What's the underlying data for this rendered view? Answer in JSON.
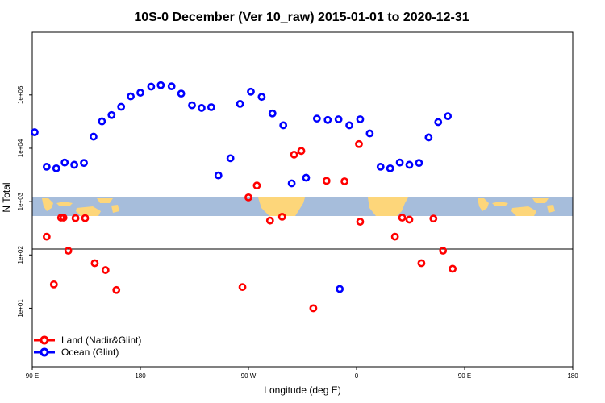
{
  "chart_data": {
    "type": "scatter",
    "title": "10S-0 December (Ver 10_raw)   2015-01-01 to 2020-12-31",
    "xlabel": "Longitude (deg E)",
    "ylabel": "N Total",
    "xlim": [
      90,
      450
    ],
    "ylog": true,
    "ylim": [
      0.8,
      1500000
    ],
    "x_ticks": [
      {
        "value": 90,
        "label": "90 E"
      },
      {
        "value": 180,
        "label": "180"
      },
      {
        "value": 270,
        "label": "90 W"
      },
      {
        "value": 360,
        "label": "0"
      },
      {
        "value": 450,
        "label": "90 E"
      },
      {
        "value": 540,
        "label": "180"
      }
    ],
    "y_ticks": [
      {
        "value": 10,
        "label": "1e+01"
      },
      {
        "value": 100,
        "label": "1e+02"
      },
      {
        "value": 1000,
        "label": "1e+03"
      },
      {
        "value": 10000,
        "label": "1e+04"
      },
      {
        "value": 100000,
        "label": "1e+05"
      }
    ],
    "note_axis": "x axis spans 90 E (90) to 180 (540) across two longitude cycles",
    "series": [
      {
        "name": "Land (Nadir&Glint)",
        "color": "#ff0000",
        "points": [
          [
            102,
            220
          ],
          [
            108,
            28
          ],
          [
            114,
            500
          ],
          [
            116,
            500
          ],
          [
            120,
            120
          ],
          [
            126,
            490
          ],
          [
            134,
            490
          ],
          [
            142,
            70
          ],
          [
            151,
            52
          ],
          [
            160,
            22
          ],
          [
            265,
            25
          ],
          [
            270,
            1200
          ],
          [
            277,
            2000
          ],
          [
            288,
            440
          ],
          [
            298,
            520
          ],
          [
            308,
            7600
          ],
          [
            314,
            8900
          ],
          [
            324,
            10
          ],
          [
            335,
            2450
          ],
          [
            350,
            2400
          ],
          [
            362,
            12000
          ],
          [
            363,
            420
          ],
          [
            392,
            220
          ],
          [
            398,
            500
          ],
          [
            404,
            460
          ],
          [
            414,
            70
          ],
          [
            424,
            480
          ],
          [
            432,
            120
          ],
          [
            440,
            55
          ]
        ]
      },
      {
        "name": "Ocean (Glint)",
        "color": "#0000ff",
        "points": [
          [
            92,
            20000
          ],
          [
            102,
            4500
          ],
          [
            110,
            4200
          ],
          [
            117,
            5400
          ],
          [
            125,
            4900
          ],
          [
            133,
            5300
          ],
          [
            141,
            16500
          ],
          [
            148,
            32000
          ],
          [
            156,
            42000
          ],
          [
            164,
            60000
          ],
          [
            172,
            94000
          ],
          [
            180,
            110000
          ],
          [
            189,
            143000
          ],
          [
            197,
            152000
          ],
          [
            206,
            145000
          ],
          [
            214,
            106000
          ],
          [
            223,
            64000
          ],
          [
            231,
            57000
          ],
          [
            239,
            59000
          ],
          [
            245,
            3100
          ],
          [
            255,
            6500
          ],
          [
            263,
            68000
          ],
          [
            272,
            115000
          ],
          [
            281,
            92000
          ],
          [
            290,
            45000
          ],
          [
            299,
            27000
          ],
          [
            306,
            2200
          ],
          [
            318,
            2800
          ],
          [
            327,
            36000
          ],
          [
            336,
            34000
          ],
          [
            345,
            35000
          ],
          [
            354,
            27000
          ],
          [
            363,
            35000
          ],
          [
            371,
            19000
          ],
          [
            380,
            4500
          ],
          [
            388,
            4200
          ],
          [
            396,
            5400
          ],
          [
            404,
            4900
          ],
          [
            412,
            5300
          ],
          [
            420,
            16000
          ],
          [
            428,
            31000
          ],
          [
            436,
            40000
          ],
          [
            346,
            23
          ]
        ]
      }
    ],
    "legend": "bottom-left"
  }
}
